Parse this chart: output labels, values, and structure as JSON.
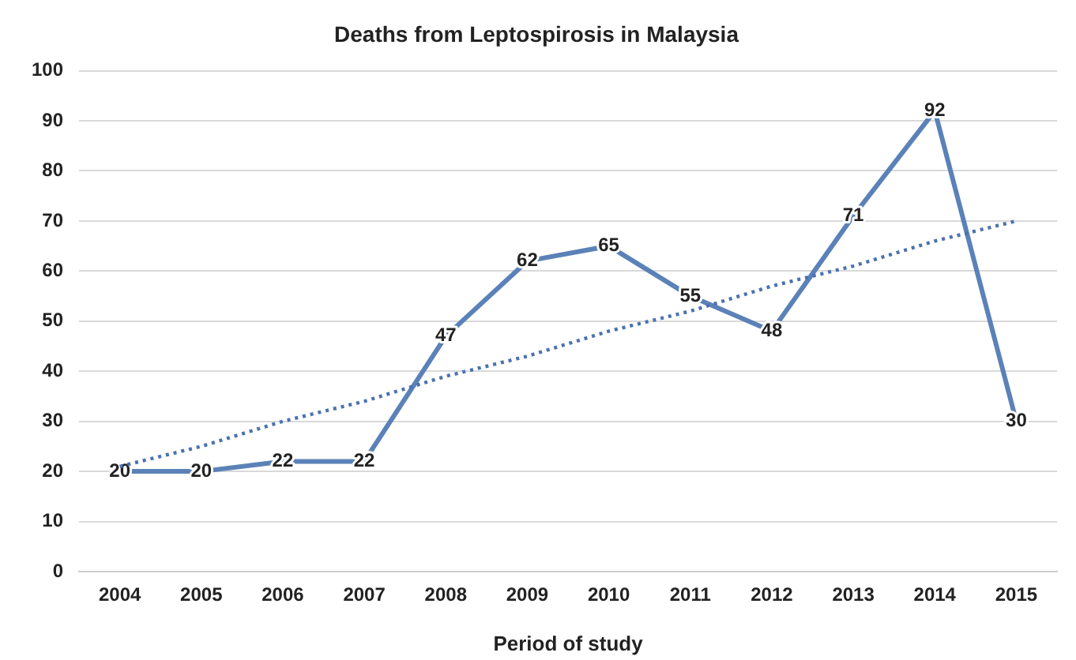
{
  "chart_data": {
    "type": "line",
    "title": "Deaths from Leptospirosis in Malaysia",
    "xlabel": "Period of study",
    "categories": [
      "2004",
      "2005",
      "2006",
      "2007",
      "2008",
      "2009",
      "2010",
      "2011",
      "2012",
      "2013",
      "2014",
      "2015"
    ],
    "series": [
      {
        "color": "#5b82b8",
        "values": [
          20,
          20,
          22,
          22,
          47,
          62,
          65,
          55,
          48,
          71,
          92,
          30
        ],
        "value_labels": [
          "20",
          "20",
          "22",
          "22",
          "47",
          "62",
          "65",
          "55",
          "48",
          "71",
          "92",
          "30"
        ]
      },
      {
        "type": "line",
        "color": "#4a72b0",
        "line_style": "dotted",
        "values": [
          21,
          25,
          30,
          34,
          39,
          43,
          48,
          52,
          57,
          61,
          66,
          70
        ]
      }
    ],
    "ylim": [
      0,
      100
    ],
    "yticks": [
      0,
      10,
      20,
      30,
      40,
      50,
      60,
      70,
      80,
      90,
      100
    ],
    "grid": "y",
    "legend": false,
    "line_style": "solid"
  }
}
